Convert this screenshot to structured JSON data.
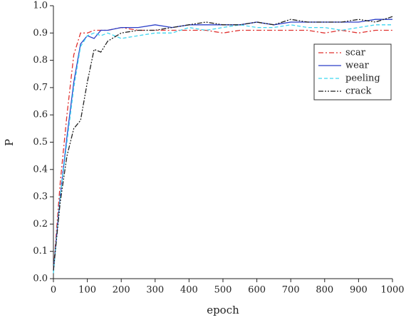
{
  "chart_data": {
    "type": "line",
    "x_label": "epoch",
    "y_label": "P",
    "x": [
      0,
      20,
      40,
      60,
      80,
      100,
      120,
      140,
      160,
      200,
      250,
      300,
      350,
      400,
      450,
      500,
      550,
      600,
      650,
      700,
      750,
      800,
      850,
      900,
      950,
      1000
    ],
    "series": [
      {
        "name": "scar",
        "color": "#e0312f",
        "style": "dash-dot",
        "values": [
          0.03,
          0.35,
          0.6,
          0.82,
          0.9,
          0.9,
          0.91,
          0.91,
          0.91,
          0.92,
          0.91,
          0.91,
          0.91,
          0.91,
          0.91,
          0.9,
          0.91,
          0.91,
          0.91,
          0.91,
          0.91,
          0.9,
          0.91,
          0.9,
          0.91,
          0.91
        ]
      },
      {
        "name": "wear",
        "color": "#2b3fc8",
        "style": "solid",
        "values": [
          0.03,
          0.3,
          0.52,
          0.72,
          0.86,
          0.89,
          0.88,
          0.91,
          0.91,
          0.92,
          0.92,
          0.93,
          0.92,
          0.93,
          0.93,
          0.93,
          0.93,
          0.94,
          0.93,
          0.94,
          0.94,
          0.94,
          0.94,
          0.94,
          0.95,
          0.95
        ]
      },
      {
        "name": "peeling",
        "color": "#3fd6f0",
        "style": "dashed",
        "values": [
          0.02,
          0.3,
          0.5,
          0.7,
          0.85,
          0.89,
          0.9,
          0.89,
          0.9,
          0.88,
          0.89,
          0.9,
          0.9,
          0.92,
          0.91,
          0.92,
          0.93,
          0.92,
          0.92,
          0.93,
          0.92,
          0.92,
          0.91,
          0.92,
          0.93,
          0.93
        ]
      },
      {
        "name": "crack",
        "color": "#222222",
        "style": "dash-dot-dot",
        "values": [
          0.03,
          0.28,
          0.45,
          0.55,
          0.58,
          0.72,
          0.84,
          0.83,
          0.87,
          0.9,
          0.91,
          0.91,
          0.92,
          0.93,
          0.94,
          0.93,
          0.93,
          0.94,
          0.93,
          0.95,
          0.94,
          0.94,
          0.94,
          0.95,
          0.94,
          0.96
        ]
      }
    ],
    "xlim": [
      0,
      1000
    ],
    "xticks": [
      0,
      100,
      200,
      300,
      400,
      500,
      600,
      700,
      800,
      900,
      1000
    ],
    "ylim": [
      0,
      1
    ],
    "yticks": [
      {
        "value": 0,
        "label": "0.0"
      },
      0.1,
      0.2,
      0.3,
      0.4,
      0.5,
      0.6,
      0.7,
      0.8,
      0.9,
      {
        "value": 1,
        "label": "1.0"
      }
    ],
    "legend": "upper-right",
    "grid": false
  }
}
